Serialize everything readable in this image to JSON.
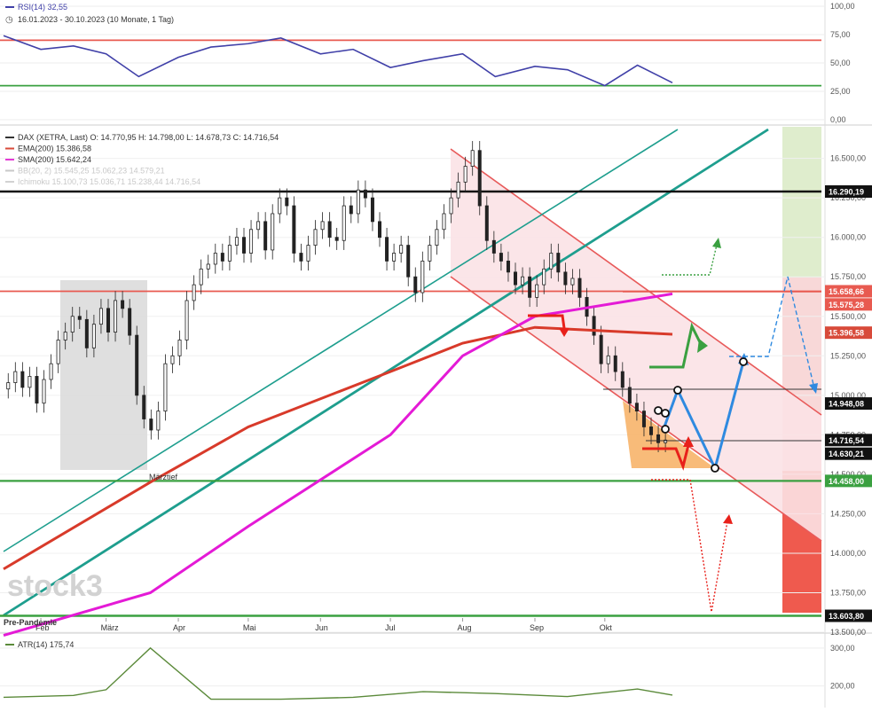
{
  "rsi_panel": {
    "title": "RSI(14) 32,55",
    "range_text": "16.01.2023 - 30.10.2023  (10 Monate, 1 Tag)",
    "ticks": [
      "100,00",
      "75,00",
      "50,00",
      "25,00",
      "0,00"
    ],
    "levels": [
      70,
      30
    ]
  },
  "price_panel": {
    "legend": [
      {
        "text": "DAX (XETRA, Last)  O: 14.770,95  H: 14.798,00  L: 14.678,73  C: 14.716,54",
        "color": "#333333"
      },
      {
        "text": "EMA(200)  15.386,58",
        "color": "#d84a3a"
      },
      {
        "text": "SMA(200)  15.642,24",
        "color": "#e43ad6"
      },
      {
        "text": "BB(20, 2)  15.545,25  15.062,23  14.579,21",
        "color": "#c8c8c8"
      },
      {
        "text": "Ichimoku  15.100,73  15.036,71  15.238,44  14.716,54",
        "color": "#d2d2d2"
      }
    ],
    "ticks": [
      "16.500,00",
      "16.250,00",
      "16.000,00",
      "15.750,00",
      "15.500,00",
      "15.250,00",
      "15.000,00",
      "14.750,00",
      "14.500,00",
      "14.250,00",
      "14.000,00",
      "13.750,00",
      "13.500,00"
    ],
    "level_labels": [
      {
        "text": "16.290,19",
        "value": 16290.19,
        "bg": "#111111"
      },
      {
        "text": "15.658,66",
        "value": 15658.66,
        "bg": "#e85a50"
      },
      {
        "text": "15.575,28",
        "value": 15575.28,
        "bg": "#e85a50"
      },
      {
        "text": "15.396,58",
        "value": 15396.58,
        "bg": "#d84a3a"
      },
      {
        "text": "14.948,08",
        "value": 14948.08,
        "bg": "#111111"
      },
      {
        "text": "14.716,54",
        "value": 14716.54,
        "bg": "#111111"
      },
      {
        "text": "14.630,21",
        "value": 14630.21,
        "bg": "#111111"
      },
      {
        "text": "14.458,00",
        "value": 14458.0,
        "bg": "#3aa040"
      },
      {
        "text": "13.603,80",
        "value": 13603.8,
        "bg": "#111111"
      }
    ],
    "annotations": {
      "maerztief": "Märztief",
      "pre_pandemie": "Pre-Pandemie"
    },
    "x_labels": [
      "Feb",
      "März",
      "Apr",
      "Mai",
      "Jun",
      "Jul",
      "Aug",
      "Sep",
      "Okt"
    ],
    "watermark": "stock3"
  },
  "atr_panel": {
    "title": "ATR(14) 175,74",
    "ticks": [
      "300,00",
      "200,00"
    ]
  },
  "colors": {
    "ema": "#d83a2a",
    "sma": "#e41ad6",
    "trend": "#1e9e8e",
    "channel": "#e85a5a",
    "support": "#3aa040",
    "rsi_line": "#4040a8",
    "blue_path": "#2f8ae0"
  },
  "chart_data": [
    {
      "type": "line",
      "title": "RSI(14) 32,55",
      "ylim": [
        0,
        100
      ],
      "x": [
        "2023-01-16",
        "2023-02-01",
        "2023-02-15",
        "2023-03-01",
        "2023-03-15",
        "2023-04-01",
        "2023-04-15",
        "2023-05-01",
        "2023-05-15",
        "2023-06-01",
        "2023-06-15",
        "2023-07-01",
        "2023-07-15",
        "2023-08-01",
        "2023-08-15",
        "2023-09-01",
        "2023-09-15",
        "2023-10-01",
        "2023-10-15",
        "2023-10-30"
      ],
      "series": [
        {
          "values": [
            74,
            62,
            65,
            58,
            38,
            55,
            64,
            67,
            72,
            58,
            62,
            46,
            52,
            58,
            38,
            47,
            44,
            30,
            48,
            32.55
          ]
        }
      ],
      "horizontal_lines": [
        70,
        30
      ]
    },
    {
      "type": "candlestick",
      "title": "DAX (XETRA, Last)  O: 14.770,95  H: 14.798,00  L: 14.678,73  C: 14.716,54",
      "x_range": [
        "2023-01-16",
        "2023-10-30"
      ],
      "ylim": [
        13500,
        16700
      ],
      "candles_close_approx": [
        15080,
        15150,
        15050,
        15120,
        14950,
        15100,
        15200,
        15350,
        15400,
        15500,
        15480,
        15300,
        15450,
        15550,
        15400,
        15600,
        15550,
        15380,
        15000,
        14850,
        14780,
        14900,
        15200,
        15250,
        15350,
        15600,
        15700,
        15800,
        15830,
        15900,
        15850,
        15950,
        16000,
        15900,
        16050,
        16100,
        15920,
        16150,
        16250,
        16200,
        15900,
        15850,
        15950,
        16050,
        16100,
        16000,
        15980,
        16200,
        16150,
        16300,
        16250,
        16100,
        16000,
        15850,
        15900,
        15950,
        15750,
        15650,
        15850,
        15950,
        16050,
        16150,
        16250,
        16350,
        16450,
        16550,
        16200,
        15980,
        15900,
        15850,
        15780,
        15700,
        15750,
        15620,
        15700,
        15800,
        15900,
        15780,
        15700,
        15740,
        15620,
        15500,
        15380,
        15200,
        15250,
        15150,
        15050,
        14950,
        14900,
        14800,
        14750,
        14700,
        14716.54
      ],
      "series": [
        {
          "name": "EMA(200)",
          "x": [
            "2023-01-16",
            "2023-03-20",
            "2023-05-01",
            "2023-07-01",
            "2023-08-01",
            "2023-09-01",
            "2023-10-30"
          ],
          "values": [
            13900,
            14450,
            14800,
            15150,
            15330,
            15430,
            15386.58
          ]
        },
        {
          "name": "SMA(200)",
          "x": [
            "2023-01-16",
            "2023-03-20",
            "2023-05-01",
            "2023-07-01",
            "2023-08-01",
            "2023-09-01",
            "2023-10-30"
          ],
          "values": [
            13480,
            13750,
            14170,
            14750,
            15250,
            15500,
            15642.24
          ]
        }
      ],
      "horizontal_levels": [
        16290.19,
        15658.66,
        15575.28,
        15396.58,
        14948.08,
        14716.54,
        14630.21,
        14458.0,
        13603.8
      ]
    },
    {
      "type": "line",
      "title": "ATR(14) 175,74",
      "ylim": [
        150,
        330
      ],
      "x": [
        "2023-01-16",
        "2023-02-15",
        "2023-03-01",
        "2023-03-20",
        "2023-04-15",
        "2023-05-15",
        "2023-06-15",
        "2023-07-15",
        "2023-08-15",
        "2023-09-15",
        "2023-10-15",
        "2023-10-30"
      ],
      "series": [
        {
          "values": [
            170,
            175,
            190,
            300,
            165,
            165,
            170,
            185,
            180,
            172,
            192,
            175.74
          ]
        }
      ]
    }
  ]
}
